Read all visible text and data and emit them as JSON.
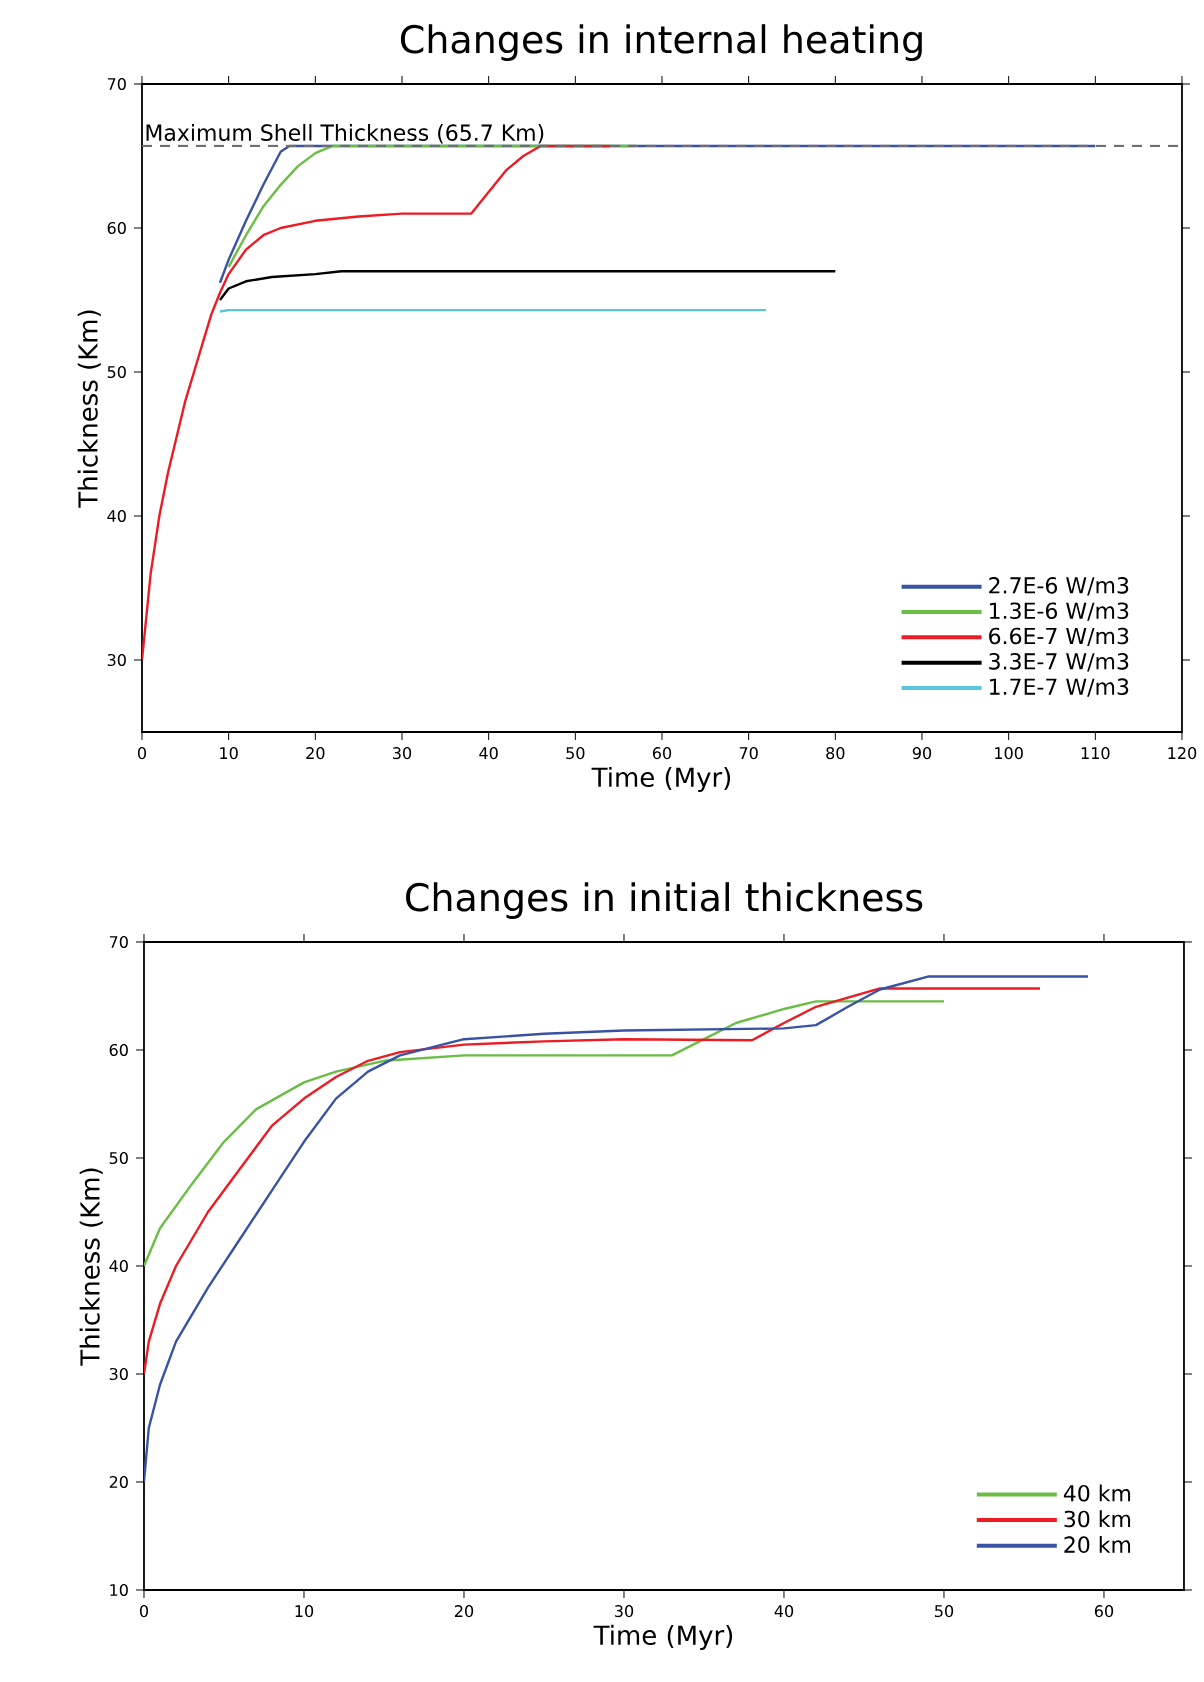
{
  "chart_data": [
    {
      "type": "line",
      "title": "Changes in internal heating",
      "xlabel": "Time (Myr)",
      "ylabel": "Thickness (Km)",
      "xlim": [
        0,
        120
      ],
      "xticks": [
        0,
        10,
        20,
        30,
        40,
        50,
        60,
        70,
        80,
        90,
        100,
        110,
        120
      ],
      "ylim": [
        25,
        70
      ],
      "yticks": [
        30,
        40,
        50,
        60,
        70
      ],
      "grid": false,
      "legend": "bottom right",
      "marker": "none",
      "line_style": "solid",
      "ref_lines": [
        {
          "axis": "y",
          "value": 65.7,
          "label": "Maximum Shell Thickness (65.7 Km)",
          "color": "#6d6e71",
          "line_style": "dashed"
        }
      ],
      "series": [
        {
          "name": "2.7E-6 W/m3",
          "color": "#3953a4",
          "x": [
            9,
            10,
            12,
            14,
            16,
            17,
            110
          ],
          "values": [
            56.2,
            57.8,
            60.5,
            63,
            65.3,
            65.7,
            65.7
          ]
        },
        {
          "name": "1.3E-6 W/m3",
          "color": "#6abd45",
          "x": [
            10,
            12,
            14,
            16,
            18,
            20,
            22,
            57
          ],
          "values": [
            57.3,
            59.5,
            61.5,
            63,
            64.3,
            65.2,
            65.7,
            65.7
          ]
        },
        {
          "name": "6.6E-7 W/m3",
          "color": "#ed1c24",
          "x": [
            0,
            0.5,
            1,
            2,
            3,
            4,
            5,
            6,
            7,
            8,
            9,
            10,
            12,
            14,
            16,
            20,
            25,
            30,
            38,
            40,
            42,
            44,
            46,
            54
          ],
          "values": [
            30,
            33,
            36,
            40,
            43,
            45.5,
            48,
            50,
            52,
            54,
            55.5,
            56.8,
            58.5,
            59.5,
            60,
            60.5,
            60.8,
            61,
            61,
            62.5,
            64,
            65,
            65.7,
            65.7
          ]
        },
        {
          "name": "3.3E-7 W/m3",
          "color": "#000000",
          "x": [
            9,
            10,
            12,
            15,
            20,
            23,
            80
          ],
          "values": [
            55,
            55.8,
            56.3,
            56.6,
            56.8,
            57,
            57
          ]
        },
        {
          "name": "1.7E-7 W/m3",
          "color": "#5bc5dc",
          "x": [
            9,
            10,
            72
          ],
          "values": [
            54.2,
            54.3,
            54.3
          ]
        }
      ]
    },
    {
      "type": "line",
      "title": "Changes in initial thickness",
      "xlabel": "Time (Myr)",
      "ylabel": "Thickness (Km)",
      "xlim": [
        0,
        65
      ],
      "xticks": [
        0,
        10,
        20,
        30,
        40,
        50,
        60
      ],
      "ylim": [
        10,
        70
      ],
      "yticks": [
        10,
        20,
        30,
        40,
        50,
        60,
        70
      ],
      "grid": false,
      "legend": "bottom right",
      "marker": "none",
      "line_style": "solid",
      "series": [
        {
          "name": "40 km",
          "color": "#6abd45",
          "x": [
            0,
            1,
            3,
            5,
            7,
            10,
            12,
            15,
            20,
            33,
            35,
            37,
            40,
            42,
            50
          ],
          "values": [
            40,
            43.5,
            47.6,
            51.5,
            54.5,
            57,
            58,
            59,
            59.5,
            59.5,
            61,
            62.5,
            63.8,
            64.5,
            64.5
          ]
        },
        {
          "name": "30 km",
          "color": "#ed1c24",
          "x": [
            0,
            0.3,
            1,
            2,
            4,
            6,
            8,
            10,
            12,
            14,
            16,
            20,
            25,
            30,
            38,
            40,
            42,
            46,
            56
          ],
          "values": [
            30,
            33,
            36.5,
            40,
            45,
            49,
            53,
            55.5,
            57.5,
            59,
            59.8,
            60.5,
            60.8,
            61,
            60.9,
            62.5,
            64,
            65.7,
            65.7
          ]
        },
        {
          "name": "20 km",
          "color": "#3953a4",
          "x": [
            0,
            0.3,
            1,
            2,
            4,
            6,
            8,
            10,
            12,
            14,
            16,
            20,
            25,
            30,
            40,
            42,
            44,
            46,
            49,
            59
          ],
          "values": [
            20,
            25,
            29,
            33,
            38,
            42.5,
            47,
            51.5,
            55.5,
            58,
            59.5,
            61,
            61.5,
            61.8,
            62,
            62.3,
            64,
            65.6,
            66.8,
            66.8
          ]
        }
      ]
    }
  ]
}
